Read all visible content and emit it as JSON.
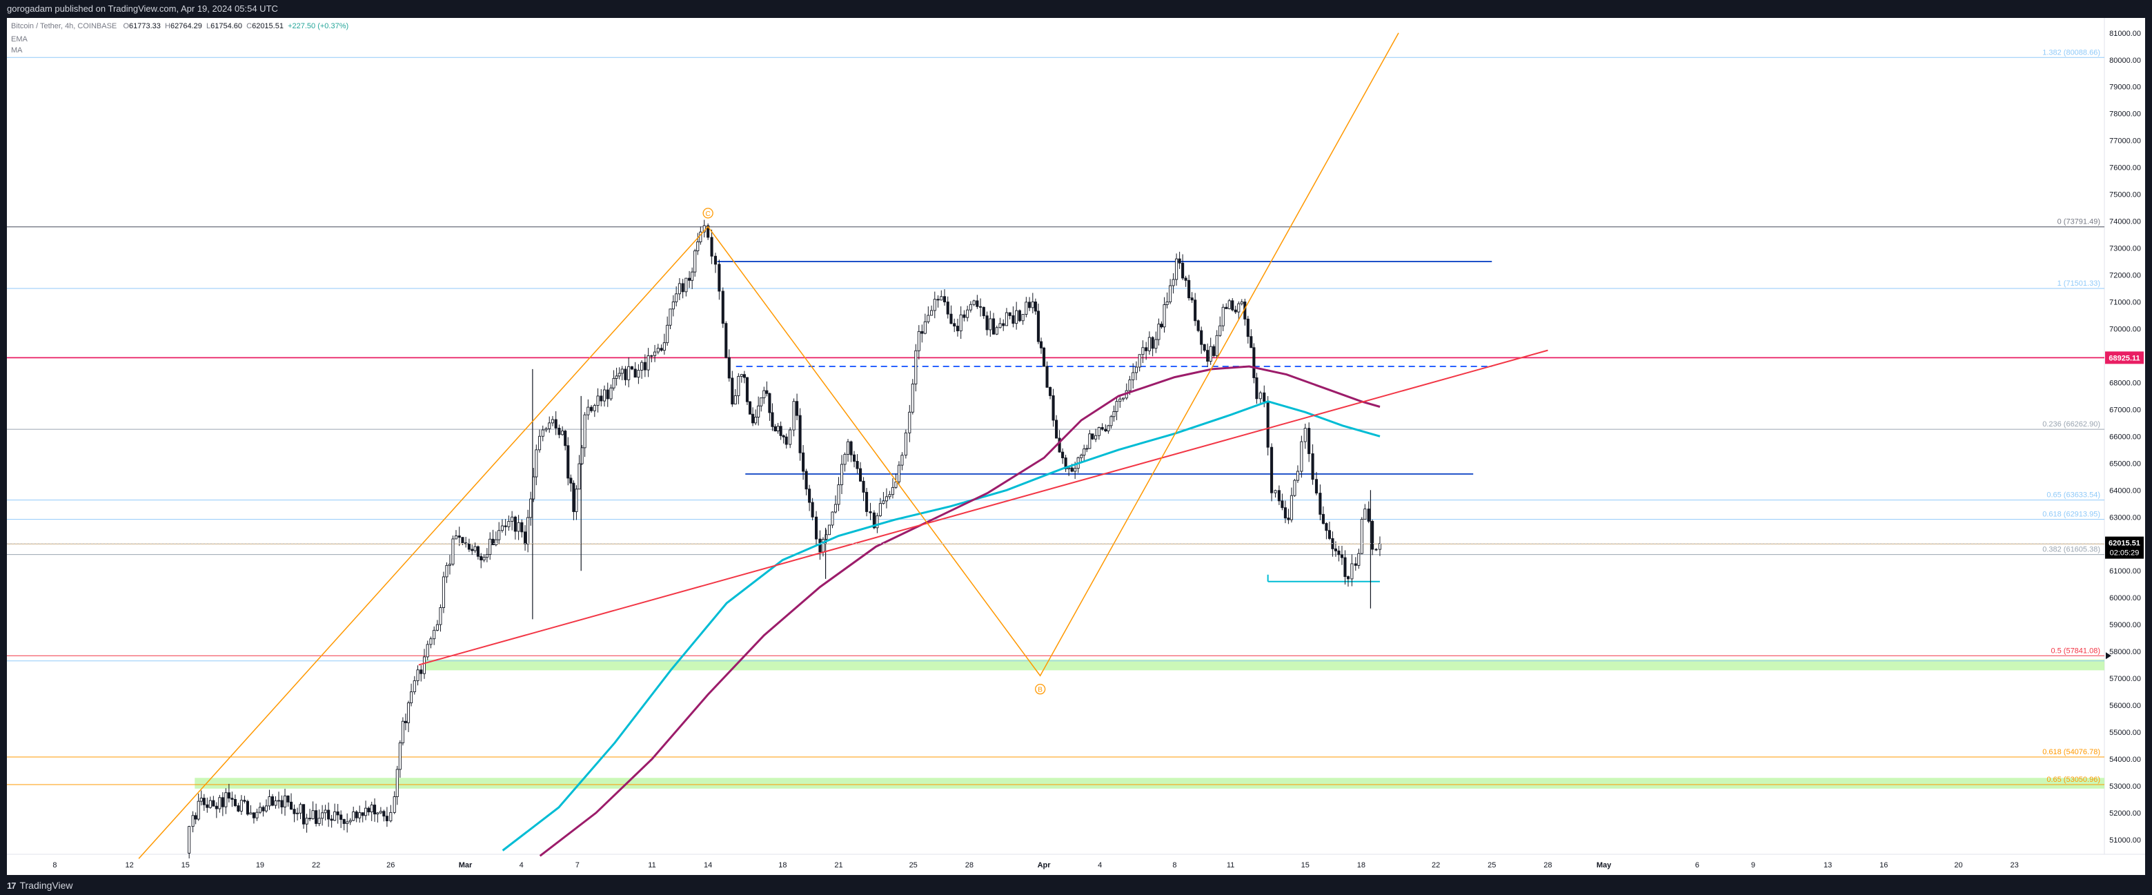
{
  "header": {
    "published_text": "gorogadam published on TradingView.com, Apr 19, 2024 05:54 UTC"
  },
  "legend": {
    "symbol": "Bitcoin / Tether, 4h, COINBASE",
    "open_label": "O",
    "open": "61773.33",
    "high_label": "H",
    "high": "62764.29",
    "low_label": "L",
    "low": "61754.60",
    "close_label": "C",
    "close": "62015.51",
    "change": "+227.50 (+0.37%)",
    "indicator_1": "EMA",
    "indicator_2": "MA"
  },
  "footer": {
    "brand": "TradingView",
    "logo_mark": "17"
  },
  "chart_data": {
    "type": "candlestick",
    "symbol": "Bitcoin / Tether",
    "interval": "4h",
    "exchange": "COINBASE",
    "ylim": [
      50200,
      81200
    ],
    "y_ticks": [
      51000,
      52000,
      53000,
      54000,
      55000,
      56000,
      57000,
      58000,
      59000,
      60000,
      61000,
      62000,
      63000,
      64000,
      65000,
      66000,
      67000,
      68000,
      69000,
      70000,
      71000,
      72000,
      73000,
      74000,
      75000,
      76000,
      77000,
      78000,
      79000,
      80000,
      81000
    ],
    "x_ticks": [
      {
        "day": -32,
        "label": "8"
      },
      {
        "day": -28,
        "label": "12"
      },
      {
        "day": -25,
        "label": "15"
      },
      {
        "day": -21,
        "label": "19"
      },
      {
        "day": -18,
        "label": "22"
      },
      {
        "day": -14,
        "label": "26"
      },
      {
        "day": -10,
        "label": "Mar"
      },
      {
        "day": -7,
        "label": "4"
      },
      {
        "day": -4,
        "label": "7"
      },
      {
        "day": 0,
        "label": "11"
      },
      {
        "day": 3,
        "label": "14"
      },
      {
        "day": 7,
        "label": "18"
      },
      {
        "day": 10,
        "label": "21"
      },
      {
        "day": 14,
        "label": "25"
      },
      {
        "day": 17,
        "label": "28"
      },
      {
        "day": 21,
        "label": "Apr"
      },
      {
        "day": 24,
        "label": "4"
      },
      {
        "day": 28,
        "label": "8"
      },
      {
        "day": 31,
        "label": "11"
      },
      {
        "day": 35,
        "label": "15"
      },
      {
        "day": 38,
        "label": "18"
      },
      {
        "day": 42,
        "label": "22"
      },
      {
        "day": 45,
        "label": "25"
      },
      {
        "day": 48,
        "label": "28"
      },
      {
        "day": 51,
        "label": "May"
      },
      {
        "day": 56,
        "label": "6"
      },
      {
        "day": 59,
        "label": "9"
      },
      {
        "day": 63,
        "label": "13"
      },
      {
        "day": 66,
        "label": "16"
      },
      {
        "day": 70,
        "label": "20"
      },
      {
        "day": 73,
        "label": "23"
      }
    ],
    "price_path": [
      [
        -25.0,
        50500
      ],
      [
        -24.6,
        51900
      ],
      [
        -24.0,
        52300
      ],
      [
        -22.5,
        52500
      ],
      [
        -21.5,
        52000
      ],
      [
        -20.5,
        52600
      ],
      [
        -19.5,
        52400
      ],
      [
        -18.5,
        51800
      ],
      [
        -17.5,
        52100
      ],
      [
        -16.5,
        51600
      ],
      [
        -15.5,
        51900
      ],
      [
        -14.7,
        52000
      ],
      [
        -14.2,
        51700
      ],
      [
        -13.8,
        52600
      ],
      [
        -13.5,
        54600
      ],
      [
        -12.9,
        56500
      ],
      [
        -12.2,
        57800
      ],
      [
        -11.5,
        59000
      ],
      [
        -11.0,
        61200
      ],
      [
        -10.5,
        62300
      ],
      [
        -9.8,
        61800
      ],
      [
        -9.0,
        61500
      ],
      [
        -8.2,
        62500
      ],
      [
        -7.5,
        63000
      ],
      [
        -6.8,
        62000
      ],
      [
        -6.2,
        65500
      ],
      [
        -5.5,
        66500
      ],
      [
        -4.8,
        66200
      ],
      [
        -4.2,
        63200
      ],
      [
        -3.6,
        66800
      ],
      [
        -2.9,
        67500
      ],
      [
        -2.2,
        67800
      ],
      [
        -1.6,
        68500
      ],
      [
        -0.9,
        68200
      ],
      [
        -0.2,
        69000
      ],
      [
        0.5,
        69200
      ],
      [
        1.3,
        71300
      ],
      [
        2.0,
        71800
      ],
      [
        2.6,
        73600
      ],
      [
        3.0,
        73400
      ],
      [
        3.4,
        72400
      ],
      [
        3.8,
        70200
      ],
      [
        4.3,
        67200
      ],
      [
        4.8,
        68300
      ],
      [
        5.4,
        66500
      ],
      [
        6.0,
        67700
      ],
      [
        6.6,
        66200
      ],
      [
        7.2,
        65700
      ],
      [
        7.6,
        67300
      ],
      [
        8.1,
        64700
      ],
      [
        8.6,
        63000
      ],
      [
        9.0,
        61700
      ],
      [
        9.5,
        62700
      ],
      [
        10.0,
        64200
      ],
      [
        10.5,
        65800
      ],
      [
        11.0,
        64800
      ],
      [
        11.5,
        63200
      ],
      [
        11.9,
        62600
      ],
      [
        12.4,
        63600
      ],
      [
        12.9,
        64100
      ],
      [
        13.4,
        65300
      ],
      [
        13.8,
        66900
      ],
      [
        14.3,
        69900
      ],
      [
        14.8,
        70500
      ],
      [
        15.5,
        71200
      ],
      [
        16.2,
        70100
      ],
      [
        16.9,
        70700
      ],
      [
        17.6,
        70800
      ],
      [
        18.3,
        69800
      ],
      [
        19.0,
        70600
      ],
      [
        19.7,
        70300
      ],
      [
        20.4,
        71000
      ],
      [
        21.0,
        68600
      ],
      [
        21.5,
        66600
      ],
      [
        22.0,
        65200
      ],
      [
        22.5,
        64700
      ],
      [
        23.0,
        65300
      ],
      [
        23.6,
        65900
      ],
      [
        24.3,
        66200
      ],
      [
        24.9,
        67300
      ],
      [
        25.6,
        68100
      ],
      [
        26.3,
        69300
      ],
      [
        27.0,
        69600
      ],
      [
        27.6,
        71000
      ],
      [
        28.1,
        72600
      ],
      [
        28.6,
        71800
      ],
      [
        29.1,
        70300
      ],
      [
        29.6,
        69200
      ],
      [
        30.1,
        69000
      ],
      [
        30.6,
        70800
      ],
      [
        31.1,
        70700
      ],
      [
        31.6,
        71000
      ],
      [
        32.1,
        69300
      ],
      [
        32.4,
        67400
      ],
      [
        32.8,
        67300
      ],
      [
        33.2,
        63900
      ],
      [
        33.6,
        63600
      ],
      [
        34.1,
        62900
      ],
      [
        34.6,
        64700
      ],
      [
        35.0,
        66300
      ],
      [
        35.4,
        64400
      ],
      [
        35.8,
        63100
      ],
      [
        36.3,
        62200
      ],
      [
        36.8,
        61600
      ],
      [
        37.3,
        60700
      ],
      [
        37.7,
        61200
      ],
      [
        38.2,
        63300
      ],
      [
        38.6,
        61800
      ],
      [
        39.0,
        62015
      ]
    ],
    "vertical_gap_spikes": [
      {
        "day": -6.4,
        "low": 59200,
        "high": 68500
      },
      {
        "day": -3.8,
        "low": 61000,
        "high": 67500
      },
      {
        "day": 9.3,
        "low": 60700,
        "high": 62600
      },
      {
        "day": 38.5,
        "low": 59600,
        "high": 64000
      }
    ],
    "moving_averages": [
      {
        "name": "EMA",
        "color": "#00bcd4",
        "points": [
          [
            -8,
            50600
          ],
          [
            -5,
            52200
          ],
          [
            -2,
            54600
          ],
          [
            1,
            57300
          ],
          [
            4,
            59800
          ],
          [
            7,
            61400
          ],
          [
            10,
            62300
          ],
          [
            13,
            62900
          ],
          [
            16,
            63400
          ],
          [
            19,
            64000
          ],
          [
            22,
            64800
          ],
          [
            25,
            65500
          ],
          [
            28,
            66100
          ],
          [
            31,
            66800
          ],
          [
            33,
            67300
          ],
          [
            35,
            66900
          ],
          [
            37,
            66400
          ],
          [
            39,
            66000
          ]
        ]
      },
      {
        "name": "MA",
        "color": "#9c1c6a",
        "points": [
          [
            -6,
            50400
          ],
          [
            -3,
            52000
          ],
          [
            0,
            54000
          ],
          [
            3,
            56400
          ],
          [
            6,
            58600
          ],
          [
            9,
            60400
          ],
          [
            12,
            61900
          ],
          [
            15,
            62900
          ],
          [
            18,
            63900
          ],
          [
            21,
            65200
          ],
          [
            23,
            66600
          ],
          [
            25,
            67500
          ],
          [
            28,
            68200
          ],
          [
            30,
            68500
          ],
          [
            32,
            68600
          ],
          [
            34,
            68300
          ],
          [
            36,
            67800
          ],
          [
            38,
            67300
          ],
          [
            39,
            67100
          ]
        ]
      }
    ],
    "current_price": {
      "value": 62015.51,
      "label": "62015.51",
      "countdown": "02:05:29",
      "color": "#000000"
    },
    "alert_level": {
      "value": 68925.11,
      "label": "68925.11",
      "color": "#e91e63"
    },
    "fib_levels": [
      {
        "ratio": "0",
        "value": 73791.49,
        "label": "0 (73791.49)",
        "color": "#787b86"
      },
      {
        "ratio": "0.236",
        "value": 66262.9,
        "label": "0.236 (66262.90)",
        "color": "#9aa5b1"
      },
      {
        "ratio": "0.382",
        "value": 61605.38,
        "label": "0.382 (61605.38)",
        "color": "#9aa5b1"
      },
      {
        "ratio": "0.5",
        "value": 57841.08,
        "label": "0.5 (57841.08)",
        "color": "#f23645"
      },
      {
        "ratio": "0.618",
        "value": 54076.78,
        "label": "0.618 (54076.78)",
        "color": "#ff9800"
      },
      {
        "ratio": "0.65",
        "value": 53050.96,
        "label": "0.65 (53050.96)",
        "color": "#ff9800"
      },
      {
        "ratio": "1",
        "value": 71501.33,
        "label": "1 (71501.33)",
        "color": "#90caf9"
      },
      {
        "ratio": "0.65",
        "value": 63633.54,
        "label": "0.65 (63633.54)",
        "color": "#90caf9"
      },
      {
        "ratio": "0.618",
        "value": 62913.95,
        "label": "0.618 (62913.95)",
        "color": "#90caf9"
      },
      {
        "ratio": "1.382",
        "value": 80088.66,
        "label": "1.382 (80088.66)",
        "color": "#90caf9"
      }
    ],
    "extra_levels": [
      {
        "value": 62000,
        "color": "#c8a97e"
      },
      {
        "value": 57650,
        "color": "#90caf9"
      }
    ],
    "drawings": {
      "resistance_top": {
        "start_day": 3.5,
        "end_day": 45,
        "value": 72500,
        "color": "#1e50c8"
      },
      "resistance_mid_dashed": {
        "start_day": 4.5,
        "end_day": 45,
        "value": 68600,
        "color": "#2962ff"
      },
      "support_mid": {
        "start_day": 5,
        "end_day": 44,
        "value": 64600,
        "color": "#1e50c8"
      },
      "support_low": {
        "start_day": 33.0,
        "end_day": 39.0,
        "value": 60600,
        "color": "#00bcd4"
      },
      "red_trendline": {
        "start": [
          -12.5,
          57500
        ],
        "end": [
          48,
          69200
        ],
        "color": "#f23645"
      },
      "green_zones": [
        {
          "start_day": -12.2,
          "low": 57300,
          "high": 57700
        },
        {
          "start_day": -24.5,
          "low": 52900,
          "high": 53300
        }
      ],
      "abc_pattern": {
        "color": "#ff9800",
        "points": [
          [
            -27.5,
            50300
          ],
          [
            3.0,
            73800
          ],
          [
            20.8,
            57100
          ],
          [
            40.0,
            81000
          ]
        ],
        "labels": [
          {
            "text": "C",
            "day": 3.0,
            "value": 74300
          },
          {
            "text": "B",
            "day": 20.8,
            "value": 56600
          }
        ]
      }
    }
  }
}
